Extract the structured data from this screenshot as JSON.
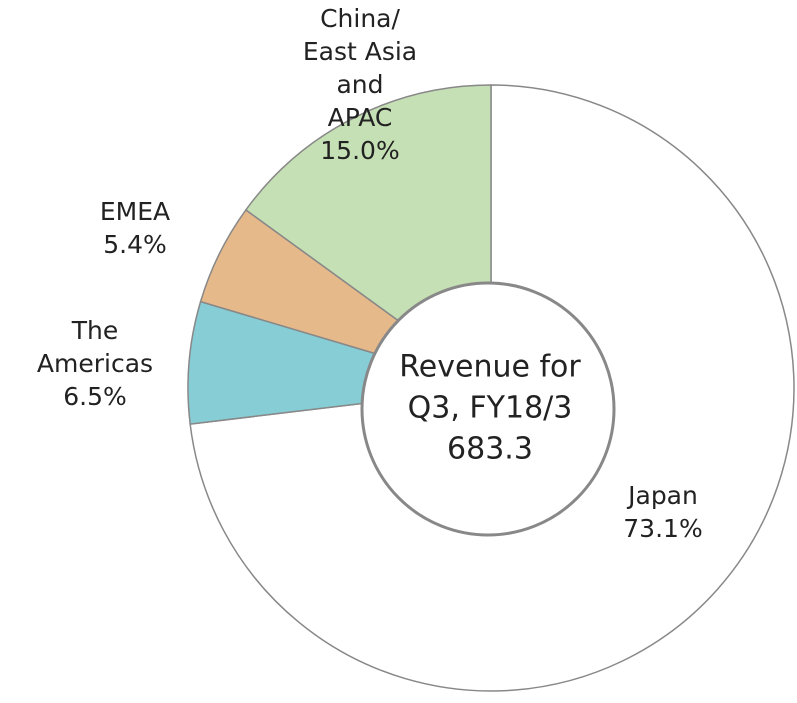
{
  "chart_data": {
    "type": "donut",
    "categories": [
      "Japan",
      "The\nAmericas",
      "EMEA",
      "China/\nEast Asia\nand\nAPAC"
    ],
    "values": [
      73.1,
      6.5,
      5.4,
      15.0
    ],
    "value_labels": [
      "73.1%",
      "6.5%",
      "5.4%",
      "15.0%"
    ],
    "colors": [
      "#ffffff",
      "#86cdd6",
      "#e6b98a",
      "#c5e0b4"
    ],
    "center_text": [
      "Revenue for",
      "Q3, FY18/3",
      "683.3"
    ]
  }
}
